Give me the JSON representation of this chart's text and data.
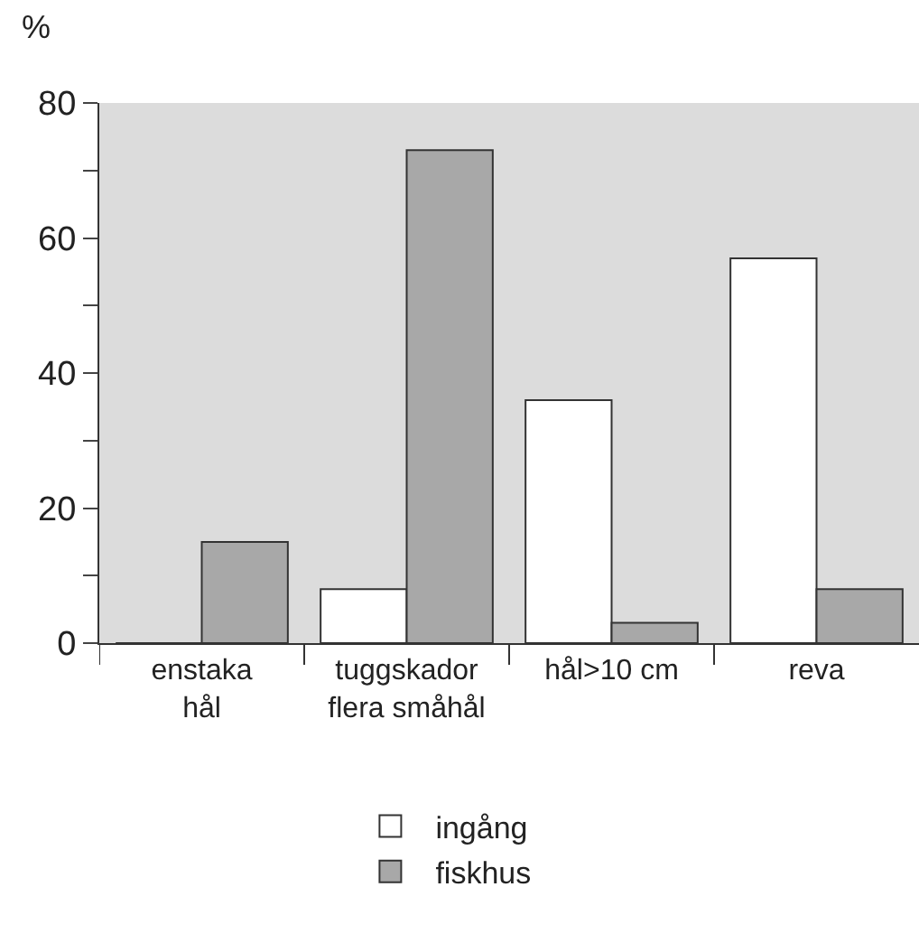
{
  "chart_data": {
    "type": "bar",
    "ylabel": "%",
    "categories": [
      "enstaka\nhål",
      "tuggskador\nflera småhål",
      "hål>10 cm",
      "reva"
    ],
    "series": [
      {
        "name": "ingång",
        "color": "#ffffff",
        "values": [
          0,
          8,
          36,
          57
        ]
      },
      {
        "name": "fiskhus",
        "color": "#a8a8a8",
        "values": [
          15,
          73,
          3,
          8
        ]
      }
    ],
    "ylim": [
      0,
      80
    ],
    "yticks": [
      0,
      {
        "value": 10,
        "label": null
      },
      20,
      {
        "value": 30,
        "label": null
      },
      40,
      {
        "value": 50,
        "label": null
      },
      60,
      {
        "value": 70,
        "label": null
      },
      80
    ],
    "legend": "bottom"
  }
}
